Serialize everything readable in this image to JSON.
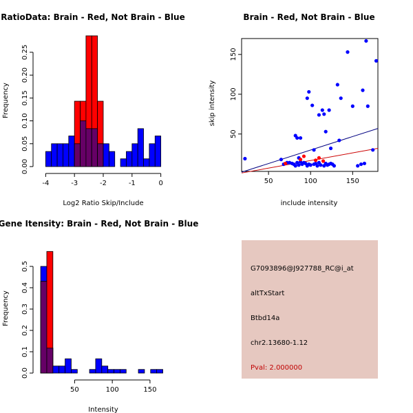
{
  "colors": {
    "red": "#ff0000",
    "blue": "#0000ff",
    "overlap": "#660066",
    "panel_bg": "#e6c8c0",
    "pval": "#c00000",
    "fit_red": "#cc0000",
    "fit_blue": "#000080"
  },
  "info_panel": {
    "probe_id": "G7093896@J927788_RC@i_at",
    "event_type": "altTxStart",
    "gene": "Btbd14a",
    "location": "chr2.13680-1.12",
    "pval": "Pval: 2.000000"
  },
  "chart_data": [
    {
      "id": "ratio",
      "type": "bar",
      "title": "RatioData: Brain - Red, Not Brain - Blue",
      "xlabel": "Log2 Ratio Skip/Include",
      "ylabel": "Frequency",
      "xlim": [
        -4.2,
        0.2
      ],
      "ylim": [
        0,
        0.28
      ],
      "xticks": [
        -4,
        -3,
        -2,
        -1,
        0
      ],
      "xtick_labels": [
        "-4",
        "-3",
        "-2",
        "-1",
        "0"
      ],
      "yticks": [
        0,
        0.05,
        0.1,
        0.15,
        0.2,
        0.25
      ],
      "ytick_labels": [
        "0.00",
        "0.05",
        "0.10",
        "0.15",
        "0.20",
        "0.25"
      ],
      "bin_start": -4.0,
      "bin_width": 0.2,
      "series": [
        {
          "name": "Not Brain",
          "color": "blue",
          "values": [
            0.033,
            0.05,
            0.05,
            0.05,
            0.067,
            0.05,
            0.1,
            0.083,
            0.083,
            0.05,
            0.05,
            0.033,
            0,
            0.017,
            0.033,
            0.05,
            0.083,
            0.017,
            0.05,
            0.067
          ]
        },
        {
          "name": "Brain",
          "color": "red",
          "values": [
            0,
            0,
            0,
            0,
            0,
            0.143,
            0.143,
            0.286,
            0.286,
            0.143,
            0,
            0,
            0,
            0,
            0,
            0,
            0,
            0,
            0,
            0
          ]
        }
      ]
    },
    {
      "id": "scatter",
      "type": "scatter",
      "title": "Brain - Red, Not Brain - Blue",
      "xlabel": "include intensity",
      "ylabel": "skip intensity",
      "xlim": [
        18,
        180
      ],
      "ylim": [
        3,
        170
      ],
      "xticks": [
        50,
        100,
        150
      ],
      "xtick_labels": [
        "50",
        "100",
        "150"
      ],
      "yticks": [
        50,
        100,
        150
      ],
      "ytick_labels": [
        "50",
        "100",
        "150"
      ],
      "series": [
        {
          "name": "Not Brain",
          "color": "blue",
          "points": [
            [
              22,
              19
            ],
            [
              65,
              18
            ],
            [
              68,
              12
            ],
            [
              72,
              14
            ],
            [
              75,
              14
            ],
            [
              78,
              13
            ],
            [
              80,
              12
            ],
            [
              82,
              10
            ],
            [
              84,
              14
            ],
            [
              86,
              11
            ],
            [
              88,
              15
            ],
            [
              90,
              12
            ],
            [
              92,
              14
            ],
            [
              94,
              13
            ],
            [
              96,
              10
            ],
            [
              98,
              12
            ],
            [
              100,
              11
            ],
            [
              104,
              12
            ],
            [
              106,
              13
            ],
            [
              108,
              10
            ],
            [
              110,
              14
            ],
            [
              112,
              11
            ],
            [
              116,
              10
            ],
            [
              118,
              13
            ],
            [
              120,
              11
            ],
            [
              122,
              12
            ],
            [
              124,
              13
            ],
            [
              126,
              12
            ],
            [
              128,
              10
            ],
            [
              82,
              48
            ],
            [
              84,
              45
            ],
            [
              88,
              45
            ],
            [
              96,
              95
            ],
            [
              98,
              103
            ],
            [
              102,
              86
            ],
            [
              110,
              74
            ],
            [
              114,
              80
            ],
            [
              116,
              75
            ],
            [
              118,
              53
            ],
            [
              122,
              80
            ],
            [
              124,
              32
            ],
            [
              104,
              30
            ],
            [
              86,
              20
            ],
            [
              132,
              112
            ],
            [
              134,
              42
            ],
            [
              136,
              95
            ],
            [
              144,
              153
            ],
            [
              150,
              85
            ],
            [
              156,
              10
            ],
            [
              160,
              12
            ],
            [
              162,
              105
            ],
            [
              164,
              13
            ],
            [
              166,
              167
            ],
            [
              168,
              85
            ],
            [
              174,
              30
            ],
            [
              178,
              142
            ]
          ]
        },
        {
          "name": "Brain",
          "color": "red",
          "points": [
            [
              70,
              13
            ],
            [
              88,
              18
            ],
            [
              92,
              22
            ],
            [
              106,
              17
            ],
            [
              110,
              20
            ],
            [
              115,
              16
            ]
          ]
        }
      ],
      "fit_lines": [
        {
          "name": "Not Brain fit",
          "color": "fit_blue",
          "from": [
            18,
            2
          ],
          "to": [
            180,
            57
          ]
        },
        {
          "name": "Brain fit",
          "color": "fit_red",
          "from": [
            18,
            1
          ],
          "to": [
            180,
            32
          ]
        }
      ]
    },
    {
      "id": "intensity",
      "type": "bar",
      "title": "Gene Itensity: Brain - Red, Not Brain - Blue",
      "xlabel": "Intensity",
      "ylabel": "Frequency",
      "xlim": [
        4,
        172
      ],
      "ylim": [
        0,
        0.6
      ],
      "xticks": [
        50,
        100,
        150
      ],
      "xtick_labels": [
        "50",
        "100",
        "150"
      ],
      "yticks": [
        0,
        0.1,
        0.2,
        0.3,
        0.4,
        0.5
      ],
      "ytick_labels": [
        "0.0",
        "0.1",
        "0.2",
        "0.3",
        "0.4",
        "0.5"
      ],
      "bin_start": 5,
      "bin_width": 8.1,
      "series": [
        {
          "name": "Not Brain",
          "color": "blue",
          "values": [
            0.5,
            0.117,
            0.033,
            0.033,
            0.067,
            0.017,
            0,
            0,
            0.017,
            0.067,
            0.033,
            0.017,
            0.017,
            0.017,
            0,
            0,
            0.017,
            0,
            0.017,
            0.017
          ]
        },
        {
          "name": "Brain",
          "color": "red",
          "values": [
            0.43,
            0.57,
            0,
            0,
            0,
            0,
            0,
            0,
            0,
            0,
            0,
            0,
            0,
            0,
            0,
            0,
            0,
            0,
            0,
            0
          ]
        }
      ]
    }
  ]
}
